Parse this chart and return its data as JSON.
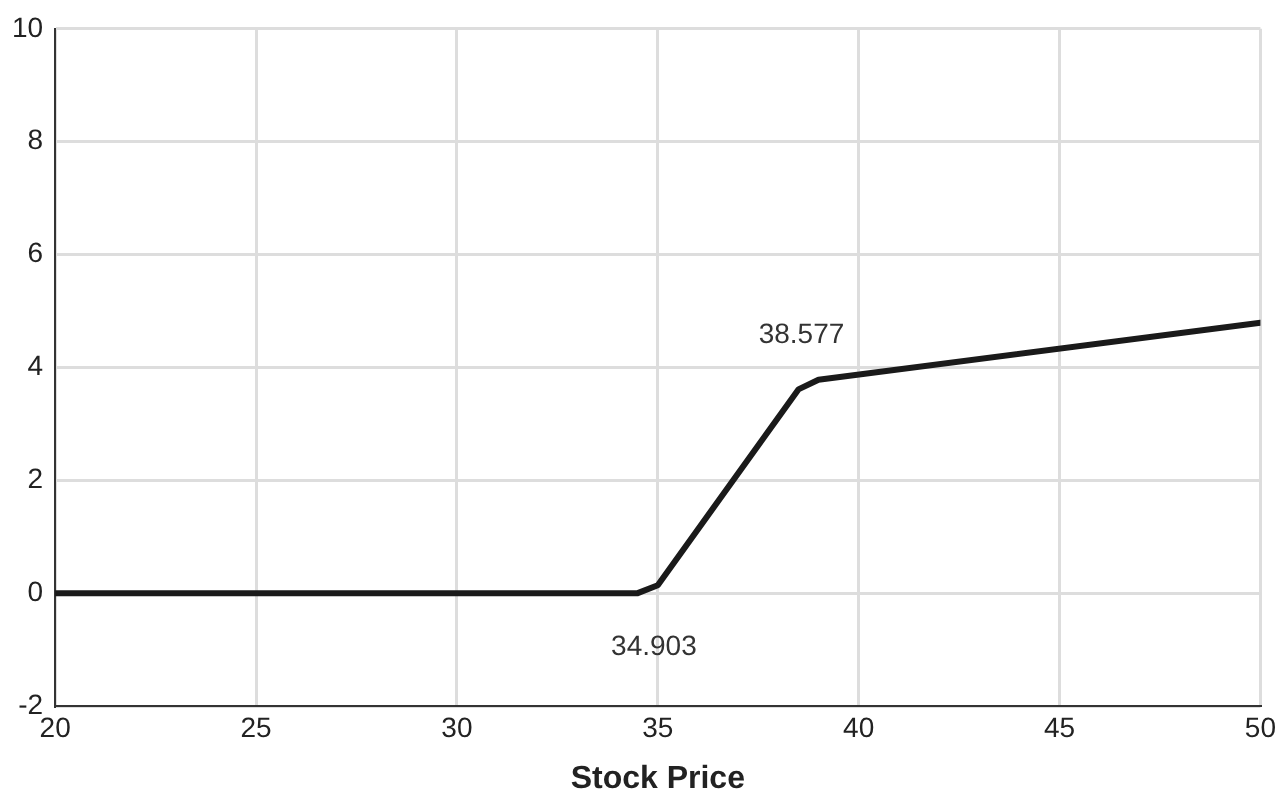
{
  "chart_data": {
    "type": "line",
    "xlabel": "Stock Price",
    "series": [
      {
        "color": "#1a1a1a",
        "x": [
          20,
          34.5,
          35,
          38.5,
          39,
          50
        ],
        "values": [
          0,
          0,
          0.14,
          3.61,
          3.78,
          4.79
        ]
      }
    ],
    "xlim": [
      20,
      50
    ],
    "xticks": [
      20,
      25,
      30,
      35,
      40,
      45,
      50
    ],
    "ylim": [
      -2,
      10
    ],
    "yticks": [
      -2,
      0,
      2,
      4,
      6,
      8,
      10
    ],
    "annotations": [
      {
        "text": "34.903",
        "x": 34.903,
        "y": 0
      },
      {
        "text": "38.577",
        "x": 38.577,
        "y": 3.61
      }
    ],
    "grid": true,
    "legend": false,
    "marker": "none",
    "line_style": "solid"
  }
}
